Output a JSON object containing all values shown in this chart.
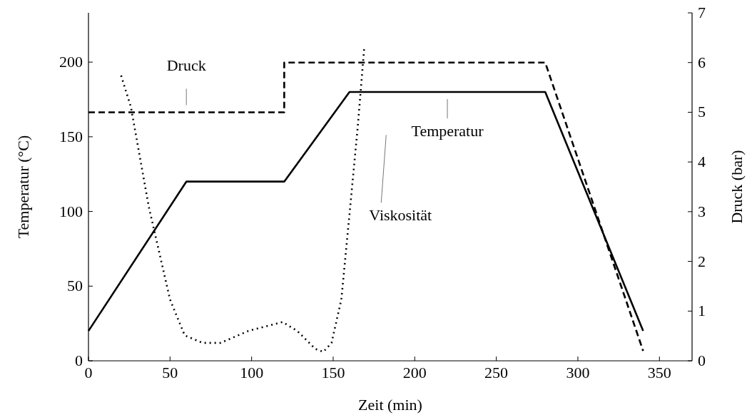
{
  "chart_data": {
    "type": "line",
    "xlabel": "Zeit (min)",
    "ylabel": "Temperatur (°C)",
    "y2label": "Druck (bar)",
    "xlim": [
      0,
      370
    ],
    "xticks": [
      0,
      50,
      100,
      150,
      200,
      250,
      300,
      350
    ],
    "ylim": [
      0,
      233
    ],
    "yticks": [
      0,
      50,
      100,
      150,
      200
    ],
    "y2lim": [
      0,
      7
    ],
    "y2ticks": [
      0,
      1,
      2,
      3,
      4,
      5,
      6,
      7
    ],
    "grid": false,
    "marker": "none",
    "series": [
      {
        "name": "Druck",
        "color": "#000000",
        "axis": "y2",
        "line_style": "dashed",
        "x": [
          0,
          120,
          120,
          280,
          340
        ],
        "values": [
          5,
          5,
          6,
          6,
          0.2
        ]
      },
      {
        "name": "Temperatur",
        "color": "#000000",
        "line_style": "solid",
        "x": [
          0,
          60,
          120,
          160,
          280,
          340
        ],
        "values": [
          20,
          120,
          120,
          180,
          180,
          20
        ]
      },
      {
        "name": "Viskosität",
        "color": "#000000",
        "line_style": "dotted",
        "x": [
          20,
          26,
          37,
          50,
          59,
          70,
          81,
          98,
          119,
          128,
          139,
          144,
          149,
          155,
          160,
          165,
          169
        ],
        "values": [
          191,
          170,
          103,
          41,
          17,
          12,
          12,
          20,
          26,
          20,
          8,
          6,
          12,
          41,
          98,
          156,
          209
        ]
      }
    ]
  }
}
